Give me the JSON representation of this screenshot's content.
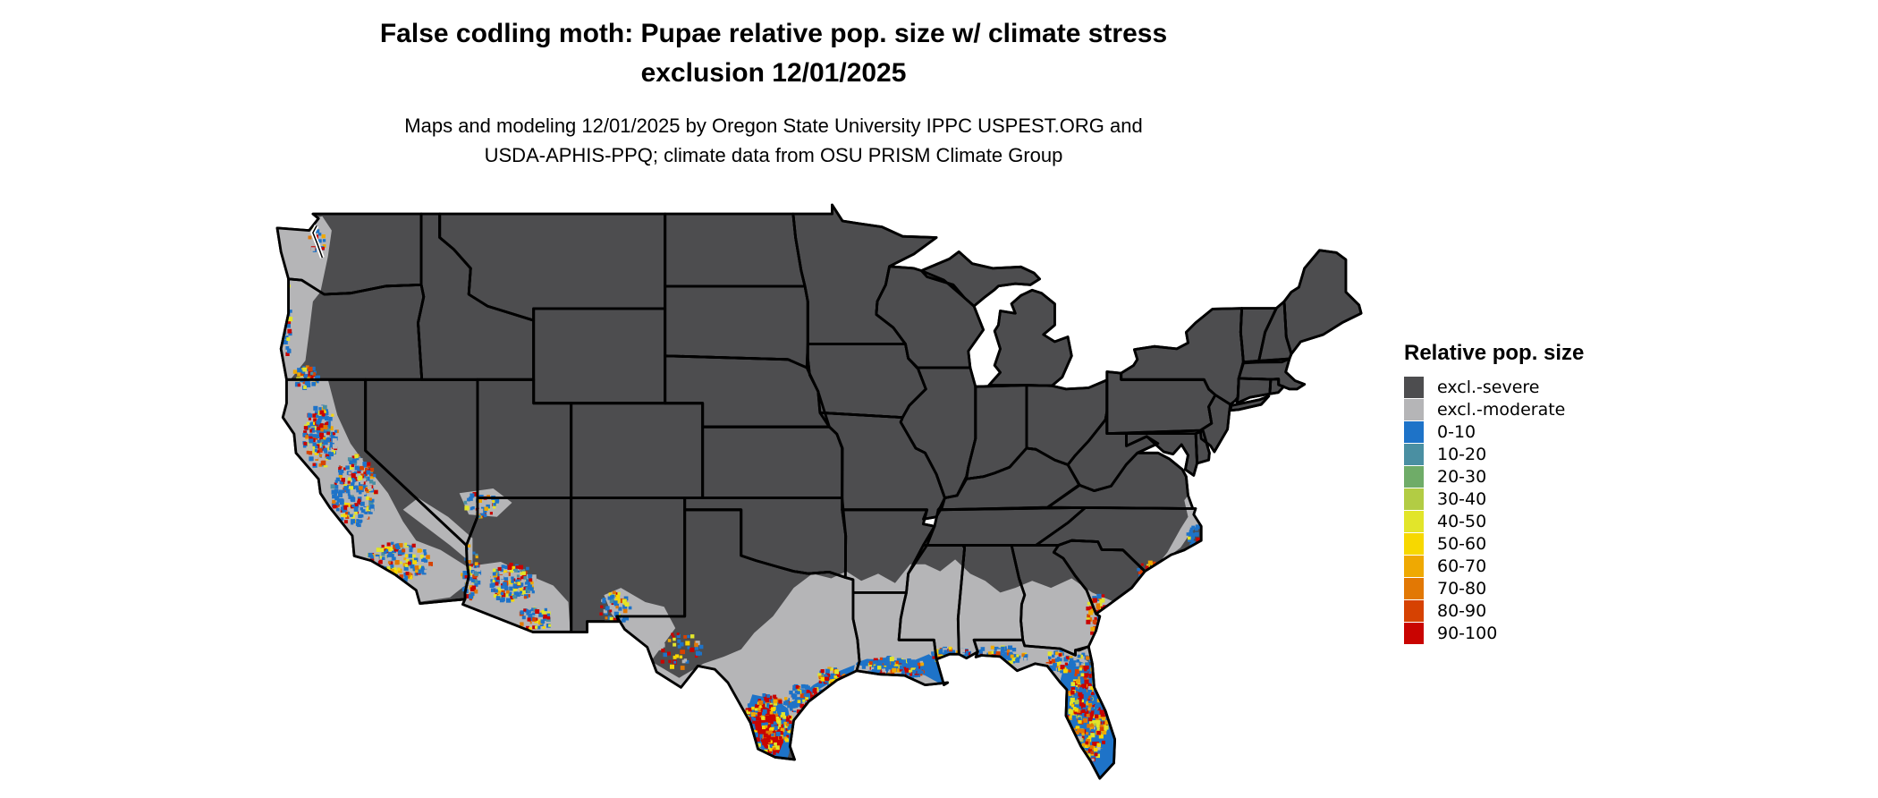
{
  "title": {
    "line1": "False codling moth: Pupae relative pop. size w/ climate stress",
    "line2": "exclusion 12/01/2025"
  },
  "subtitle": {
    "line1": "Maps and modeling 12/01/2025 by Oregon State University IPPC USPEST.ORG and",
    "line2": "USDA-APHIS-PPQ; climate data from OSU PRISM Climate Group"
  },
  "legend": {
    "title": "Relative pop. size",
    "items": [
      {
        "label": "excl.-severe",
        "color": "#4d4d4f"
      },
      {
        "label": "excl.-moderate",
        "color": "#b5b5b7"
      },
      {
        "label": "0-10",
        "color": "#1e73c8"
      },
      {
        "label": "10-20",
        "color": "#4a8fa2"
      },
      {
        "label": "20-30",
        "color": "#6fac68"
      },
      {
        "label": "30-40",
        "color": "#b2cc44"
      },
      {
        "label": "40-50",
        "color": "#e2e52a"
      },
      {
        "label": "50-60",
        "color": "#f7d800"
      },
      {
        "label": "60-70",
        "color": "#efa902"
      },
      {
        "label": "70-80",
        "color": "#e27804"
      },
      {
        "label": "80-90",
        "color": "#d64202"
      },
      {
        "label": "90-100",
        "color": "#c90401"
      }
    ]
  },
  "map": {
    "background_color": "#ffffff",
    "border_color": "#000000",
    "region": "contiguous United States"
  }
}
